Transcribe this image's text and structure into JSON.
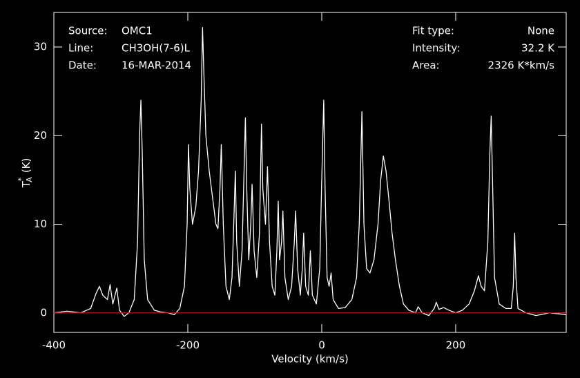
{
  "chart_data": {
    "type": "line",
    "xlabel": "Velocity (km/s)",
    "ylabel": {
      "main": "T",
      "sub": "A",
      "sup": "*",
      "unit": "(K)"
    },
    "annotations_left": [
      {
        "label": "Source:",
        "text": "OMC1"
      },
      {
        "label": "Line:",
        "text": "CH3OH(7-6)L"
      },
      {
        "label": "Date:",
        "text": "16-MAR-2014"
      }
    ],
    "annotations_right": [
      {
        "label": "Fit type:",
        "text": "None"
      },
      {
        "label": "Intensity:",
        "text": "32.2 K"
      },
      {
        "label": "Area:",
        "text": "2326 K*km/s"
      }
    ],
    "xlim": [
      -400,
      365
    ],
    "ylim": [
      -2.2,
      33.9
    ],
    "xticks": [
      -400,
      -200,
      0,
      200
    ],
    "yticks": [
      0,
      10,
      20,
      30
    ],
    "reference_line": {
      "value": 0,
      "color": "#e00000"
    },
    "series": [
      {
        "name": "OMC1",
        "color": "#ffffff",
        "x": [
          -400,
          -380,
          -360,
          -345,
          -337,
          -332,
          -327,
          -320,
          -316,
          -312,
          -306,
          -302,
          -295,
          -288,
          -280,
          -275,
          -272,
          -270,
          -268,
          -265,
          -260,
          -250,
          -240,
          -230,
          -220,
          -212,
          -205,
          -201,
          -199,
          -197,
          -193,
          -188,
          -184,
          -180,
          -178,
          -176,
          -173,
          -168,
          -163,
          -158,
          -155,
          -152,
          -150,
          -147,
          -143,
          -138,
          -134,
          -131,
          -129,
          -127,
          -123,
          -119,
          -116,
          -114,
          -112,
          -109,
          -106,
          -104,
          -101,
          -97,
          -93,
          -90,
          -88,
          -84,
          -81,
          -78,
          -74,
          -70,
          -67,
          -65,
          -63,
          -60,
          -58,
          -55,
          -50,
          -45,
          -41,
          -39,
          -36,
          -32,
          -29,
          -27,
          -24,
          -20,
          -17,
          -14,
          -8,
          -3,
          0,
          3,
          5,
          8,
          11,
          14,
          17,
          25,
          35,
          45,
          52,
          56,
          60,
          63,
          67,
          72,
          78,
          84,
          88,
          92,
          96,
          100,
          105,
          110,
          116,
          122,
          130,
          140,
          144,
          150,
          160,
          168,
          171,
          175,
          182,
          190,
          200,
          210,
          220,
          228,
          234,
          238,
          243,
          248,
          251,
          253,
          255,
          258,
          265,
          275,
          283,
          286,
          288,
          290,
          293,
          305,
          320,
          340,
          365
        ],
        "values": [
          0,
          0.2,
          0,
          0.5,
          2.2,
          3.0,
          2.0,
          1.5,
          3.2,
          1.0,
          2.8,
          0.3,
          -0.4,
          0,
          1.5,
          8,
          20,
          24,
          18,
          6,
          1.5,
          0.3,
          0.1,
          0,
          -0.2,
          0.5,
          3,
          10,
          19,
          14,
          10,
          12,
          16,
          24,
          32.2,
          27,
          20,
          16,
          13,
          10,
          9.5,
          14,
          19,
          10,
          3,
          1.5,
          4,
          11,
          16,
          8,
          3,
          7,
          16,
          22,
          14,
          6,
          10,
          14.5,
          7,
          4,
          9,
          21.3,
          14,
          10,
          16.5,
          8,
          3,
          2,
          7,
          12.6,
          6,
          8,
          11.5,
          4,
          1.5,
          3,
          8,
          11.5,
          5,
          2,
          5,
          9,
          3,
          2,
          7,
          2,
          1,
          5,
          15,
          24,
          14,
          4,
          3,
          4.5,
          1.5,
          0.5,
          0.6,
          1.5,
          4,
          10,
          22.7,
          10,
          5,
          4.5,
          6,
          10,
          15,
          17.7,
          16,
          13,
          9,
          6,
          3,
          1,
          0.3,
          0,
          0.7,
          0,
          -0.3,
          0.5,
          1.2,
          0.4,
          0.6,
          0.3,
          0,
          0.3,
          1,
          2.5,
          4.2,
          3,
          2.5,
          8,
          18,
          22.2,
          15,
          4,
          1,
          0.5,
          0.5,
          3,
          9,
          4,
          0.5,
          0,
          -0.3,
          0,
          -0.2
        ]
      }
    ]
  }
}
